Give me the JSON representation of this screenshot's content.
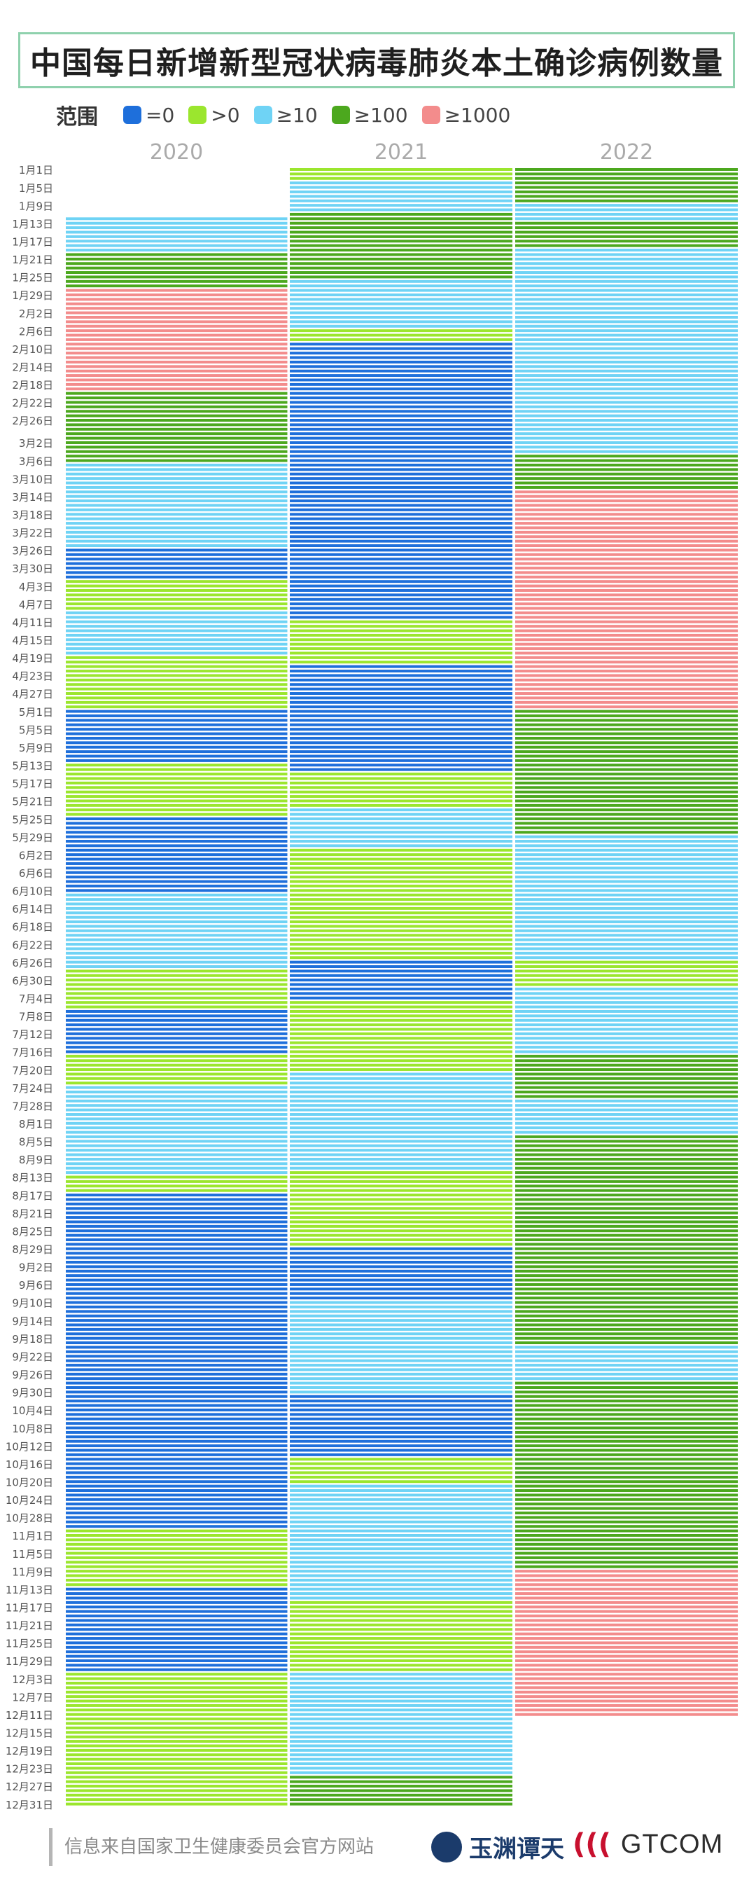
{
  "title": "中国每日新增新型冠状病毒肺炎本土确诊病例数量",
  "source": "信息来自国家卫生健康委员会官方网站",
  "logos": {
    "yuyuan": "玉渊谭天",
    "gtcom": "GTCOM",
    "gtcom_mark": "((("
  },
  "colors": {
    "c0": "#1e6fdb",
    "c1": "#9be62e",
    "c2": "#6fd3f5",
    "c3": "#4ca81e",
    "c4": "#f38c8c"
  },
  "chart_data": {
    "type": "heatmap",
    "title": "中国每日新增新型冠状病毒肺炎本土确诊病例数量",
    "legend_title": "范围",
    "legend_position": "top-left",
    "legend": [
      {
        "code": 0,
        "label": "=0",
        "color": "#1e6fdb"
      },
      {
        "code": 1,
        "label": ">0",
        "color": "#9be62e"
      },
      {
        "code": 2,
        "label": "≥10",
        "color": "#6fd3f5"
      },
      {
        "code": 3,
        "label": "≥100",
        "color": "#4ca81e"
      },
      {
        "code": 4,
        "label": "≥1000",
        "color": "#f38c8c"
      }
    ],
    "years": [
      "2020",
      "2021",
      "2022"
    ],
    "y_ticks": [
      "1月1日",
      "1月5日",
      "1月9日",
      "1月13日",
      "1月17日",
      "1月21日",
      "1月25日",
      "1月29日",
      "2月2日",
      "2月6日",
      "2月10日",
      "2月14日",
      "2月18日",
      "2月22日",
      "2月26日",
      "3月2日",
      "3月6日",
      "3月10日",
      "3月14日",
      "3月18日",
      "3月22日",
      "3月26日",
      "3月30日",
      "4月3日",
      "4月7日",
      "4月11日",
      "4月15日",
      "4月19日",
      "4月23日",
      "4月27日",
      "5月1日",
      "5月5日",
      "5月9日",
      "5月13日",
      "5月17日",
      "5月21日",
      "5月25日",
      "5月29日",
      "6月2日",
      "6月6日",
      "6月10日",
      "6月14日",
      "6月18日",
      "6月22日",
      "6月26日",
      "6月30日",
      "7月4日",
      "7月8日",
      "7月12日",
      "7月16日",
      "7月20日",
      "7月24日",
      "7月28日",
      "8月1日",
      "8月5日",
      "8月9日",
      "8月13日",
      "8月17日",
      "8月21日",
      "8月25日",
      "8月29日",
      "9月2日",
      "9月6日",
      "9月10日",
      "9月14日",
      "9月18日",
      "9月22日",
      "9月26日",
      "9月30日",
      "10月4日",
      "10月8日",
      "10月12日",
      "10月16日",
      "10月20日",
      "10月24日",
      "10月28日",
      "11月1日",
      "11月5日",
      "11月9日",
      "11月13日",
      "11月17日",
      "11月21日",
      "11月25日",
      "11月29日",
      "12月3日",
      "12月7日",
      "12月11日",
      "12月15日",
      "12月19日",
      "12月23日",
      "12月27日",
      "12月31日"
    ],
    "series": [
      {
        "name": "2020",
        "segments": [
          {
            "start": "1月1日",
            "end": "1月11日",
            "code": null
          },
          {
            "start": "1月12日",
            "end": "1月19日",
            "code": 2
          },
          {
            "start": "1月20日",
            "end": "1月27日",
            "code": 3
          },
          {
            "start": "1月28日",
            "end": "2月19日",
            "code": 4
          },
          {
            "start": "2月20日",
            "end": "3月6日",
            "code": 3
          },
          {
            "start": "3月7日",
            "end": "3月25日",
            "code": 2
          },
          {
            "start": "3月26日",
            "end": "4月1日",
            "code": 0
          },
          {
            "start": "4月2日",
            "end": "4月8日",
            "code": 1
          },
          {
            "start": "4月9日",
            "end": "4月18日",
            "code": 2
          },
          {
            "start": "4月19日",
            "end": "4月30日",
            "code": 1
          },
          {
            "start": "5月1日",
            "end": "5月12日",
            "code": 0
          },
          {
            "start": "5月13日",
            "end": "5月24日",
            "code": 1
          },
          {
            "start": "5月25日",
            "end": "6月10日",
            "code": 0
          },
          {
            "start": "6月11日",
            "end": "6月27日",
            "code": 2
          },
          {
            "start": "6月28日",
            "end": "7月6日",
            "code": 1
          },
          {
            "start": "7月7日",
            "end": "7月16日",
            "code": 0
          },
          {
            "start": "7月17日",
            "end": "7月23日",
            "code": 1
          },
          {
            "start": "7月24日",
            "end": "8月12日",
            "code": 2
          },
          {
            "start": "8月13日",
            "end": "8月16日",
            "code": 1
          },
          {
            "start": "8月17日",
            "end": "10月30日",
            "code": 0
          },
          {
            "start": "10月31日",
            "end": "11月12日",
            "code": 1
          },
          {
            "start": "11月13日",
            "end": "12月1日",
            "code": 0
          },
          {
            "start": "12月2日",
            "end": "12月31日",
            "code": 1
          }
        ]
      },
      {
        "name": "2021",
        "segments": [
          {
            "start": "1月1日",
            "end": "1月3日",
            "code": 1
          },
          {
            "start": "1月4日",
            "end": "1月10日",
            "code": 2
          },
          {
            "start": "1月11日",
            "end": "1月25日",
            "code": 3
          },
          {
            "start": "1月26日",
            "end": "2月5日",
            "code": 2
          },
          {
            "start": "2月6日",
            "end": "2月8日",
            "code": 1
          },
          {
            "start": "2月9日",
            "end": "4月10日",
            "code": 0
          },
          {
            "start": "4月11日",
            "end": "4月20日",
            "code": 1
          },
          {
            "start": "4月21日",
            "end": "5月14日",
            "code": 0
          },
          {
            "start": "5月15日",
            "end": "5月22日",
            "code": 1
          },
          {
            "start": "5月23日",
            "end": "5月31日",
            "code": 2
          },
          {
            "start": "6月1日",
            "end": "6月25日",
            "code": 1
          },
          {
            "start": "6月26日",
            "end": "7月4日",
            "code": 0
          },
          {
            "start": "7月5日",
            "end": "7月20日",
            "code": 1
          },
          {
            "start": "7月21日",
            "end": "8月11日",
            "code": 2
          },
          {
            "start": "8月12日",
            "end": "8月28日",
            "code": 1
          },
          {
            "start": "8月29日",
            "end": "9月9日",
            "code": 0
          },
          {
            "start": "9月10日",
            "end": "9月30日",
            "code": 2
          },
          {
            "start": "10月1日",
            "end": "10月14日",
            "code": 0
          },
          {
            "start": "10月15日",
            "end": "10月20日",
            "code": 1
          },
          {
            "start": "10月21日",
            "end": "11月15日",
            "code": 2
          },
          {
            "start": "11月16日",
            "end": "12月1日",
            "code": 1
          },
          {
            "start": "12月2日",
            "end": "12月24日",
            "code": 2
          },
          {
            "start": "12月25日",
            "end": "12月31日",
            "code": 3
          }
        ]
      },
      {
        "name": "2022",
        "segments": [
          {
            "start": "1月1日",
            "end": "1月8日",
            "code": 3
          },
          {
            "start": "1月9日",
            "end": "1月12日",
            "code": 2
          },
          {
            "start": "1月13日",
            "end": "1月18日",
            "code": 3
          },
          {
            "start": "1月19日",
            "end": "3月4日",
            "code": 2
          },
          {
            "start": "3月5日",
            "end": "3月12日",
            "code": 3
          },
          {
            "start": "3月13日",
            "end": "4月30日",
            "code": 4
          },
          {
            "start": "5月1日",
            "end": "5月28日",
            "code": 3
          },
          {
            "start": "5月29日",
            "end": "6月25日",
            "code": 2
          },
          {
            "start": "6月26日",
            "end": "7月1日",
            "code": 1
          },
          {
            "start": "7月2日",
            "end": "7月16日",
            "code": 2
          },
          {
            "start": "7月17日",
            "end": "7月26日",
            "code": 3
          },
          {
            "start": "7月27日",
            "end": "8月3日",
            "code": 2
          },
          {
            "start": "8月4日",
            "end": "9月19日",
            "code": 3
          },
          {
            "start": "9月20日",
            "end": "9月27日",
            "code": 2
          },
          {
            "start": "9月28日",
            "end": "11月8日",
            "code": 3
          },
          {
            "start": "11月9日",
            "end": "12月11日",
            "code": 4
          },
          {
            "start": "12月12日",
            "end": "12月31日",
            "code": null
          }
        ]
      }
    ]
  }
}
